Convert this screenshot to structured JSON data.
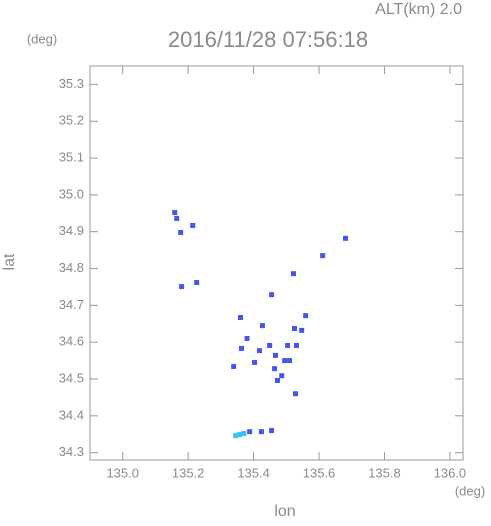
{
  "chart_data": {
    "type": "scatter",
    "title": "2016/11/28 07:56:18",
    "subtitle": "ALT(km) 2.0",
    "y_unit": "(deg)",
    "x_unit": "(deg)",
    "xlabel": "lon",
    "ylabel": "lat",
    "xlim": [
      134.9,
      136.04
    ],
    "ylim": [
      34.28,
      35.35
    ],
    "xticks": [
      {
        "value": 135.0,
        "label": "135.0"
      },
      135.2,
      135.4,
      135.6,
      135.8,
      {
        "value": 136.0,
        "label": "136.0"
      }
    ],
    "yticks": [
      34.3,
      34.4,
      34.5,
      34.6,
      34.7,
      34.8,
      34.9,
      {
        "value": 35.0,
        "label": "35.0"
      },
      35.1,
      35.2,
      35.3
    ],
    "series": [
      {
        "color": "#4457e8",
        "x": [
          135.159,
          135.165,
          135.177,
          135.214,
          135.18,
          135.226,
          135.681,
          135.611,
          135.522,
          135.455,
          135.559,
          135.525,
          135.427,
          135.36,
          135.38,
          135.363,
          135.418,
          135.449,
          135.467,
          135.495,
          135.464,
          135.486,
          135.51,
          135.504,
          135.531,
          135.547,
          135.473,
          135.528,
          135.339,
          135.403,
          135.388,
          135.424,
          135.455
        ],
        "values": [
          34.952,
          34.936,
          34.898,
          34.917,
          34.751,
          34.762,
          34.882,
          34.835,
          34.786,
          34.729,
          34.672,
          34.637,
          34.645,
          34.667,
          34.61,
          34.583,
          34.577,
          34.591,
          34.564,
          34.55,
          34.528,
          34.509,
          34.55,
          34.591,
          34.591,
          34.632,
          34.496,
          34.46,
          34.534,
          34.545,
          34.357,
          34.357,
          34.36
        ]
      },
      {
        "color": "#33c4ee",
        "x": [
          135.357,
          135.345,
          135.37
        ],
        "values": [
          34.349,
          34.346,
          34.352
        ]
      }
    ]
  }
}
